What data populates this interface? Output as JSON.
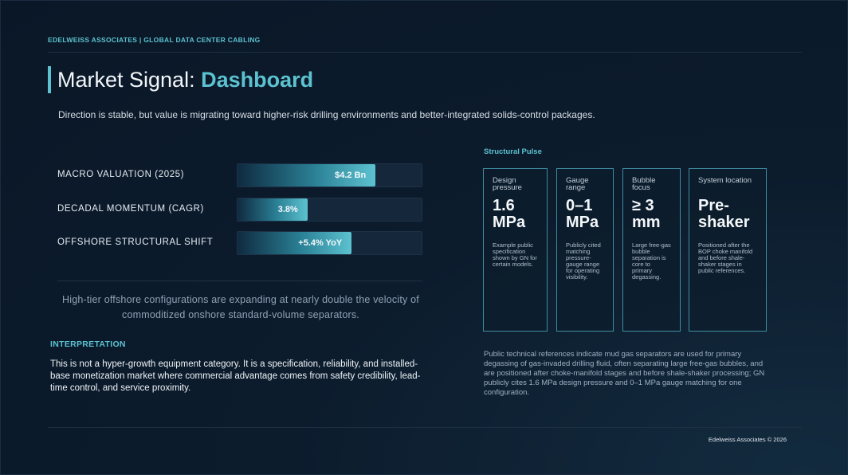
{
  "header": {
    "brand": "EDELWEISS ASSOCIATES | GLOBAL DATA CENTER CABLING"
  },
  "title": {
    "prefix": "Market Signal: ",
    "highlight": "Dashboard"
  },
  "subtitle": "Direction is stable, but value is migrating toward higher-risk drilling environments and better-integrated solids-control packages.",
  "metrics": [
    {
      "label": "MACRO VALUATION (2025)",
      "value": "$4.2 Bn",
      "fill_percent": 75
    },
    {
      "label": "DECADAL MOMENTUM (CAGR)",
      "value": "3.8%",
      "fill_percent": 38
    },
    {
      "label": "OFFSHORE STRUCTURAL SHIFT",
      "value": "+5.4% YoY",
      "fill_percent": 62
    }
  ],
  "quote": "High-tier offshore configurations are expanding at nearly double the velocity of commoditized onshore standard-volume separators.",
  "interpretation": {
    "title": "INTERPRETATION",
    "body": "This is not a hyper-growth equipment category. It is a specification, reliability, and installed-base monetization market where commercial advantage comes from safety credibility, lead-time control, and service proximity."
  },
  "pulse": {
    "title": "Structural Pulse",
    "cards": [
      {
        "label": "Design pressure",
        "value": "1.6 MPa",
        "desc": "Example public specification shown by GN for certain models."
      },
      {
        "label": "Gauge range",
        "value": "0–1 MPa",
        "desc": "Publicly cited matching pressure-gauge range for operating visibility."
      },
      {
        "label": "Bubble focus",
        "value": "≥ 3 mm",
        "desc": "Large free-gas bubble separation is core to primary degassing."
      },
      {
        "label": "System location",
        "value": "Pre-shaker",
        "desc": "Positioned after the BOP choke manifold and before shale-shaker stages in public references."
      }
    ],
    "summary": "Public technical references indicate mud gas separators are used for primary degassing of gas-invaded drilling fluid, often separating large free-gas bubbles, and are positioned after choke-manifold stages and before shale-shaker processing; GN publicly cites 1.6 MPa design pressure and 0–1 MPa gauge matching for one configuration."
  },
  "footer": "Edelweiss Associates © 2026",
  "colors": {
    "accent": "#5cc2d0",
    "background": "#0b1a2b",
    "card_border": "#3f8da0"
  }
}
